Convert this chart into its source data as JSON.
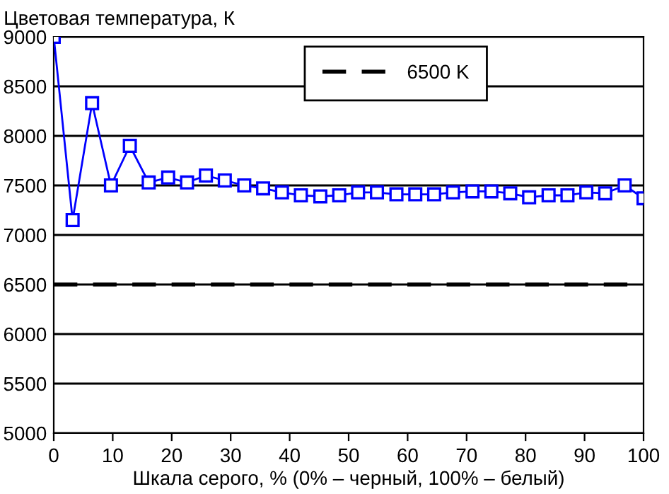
{
  "chart_data": {
    "type": "line",
    "ylabel": "Цветовая температура, К",
    "xlabel": "Шкала серого, % (0% – черный, 100% – белый)",
    "x": [
      0,
      3.2,
      6.5,
      9.7,
      12.9,
      16.1,
      19.4,
      22.6,
      25.8,
      29.0,
      32.3,
      35.5,
      38.7,
      41.9,
      45.2,
      48.4,
      51.6,
      54.8,
      58.1,
      61.3,
      64.5,
      67.7,
      71.0,
      74.2,
      77.4,
      80.6,
      83.9,
      87.1,
      90.3,
      93.5,
      96.8,
      100
    ],
    "series": [
      {
        "color": "#0000ff",
        "values": [
          9000,
          7150,
          8330,
          7500,
          7900,
          7530,
          7580,
          7530,
          7600,
          7550,
          7500,
          7470,
          7430,
          7400,
          7390,
          7400,
          7430,
          7430,
          7410,
          7410,
          7410,
          7430,
          7440,
          7440,
          7420,
          7380,
          7400,
          7400,
          7430,
          7420,
          7500,
          7370
        ]
      }
    ],
    "marker": "square",
    "line_style": "solid",
    "ref_lines": [
      {
        "axis": "y",
        "value": 6500,
        "label": "6500 K",
        "color": "#000000",
        "line_style": "dashed"
      }
    ],
    "xlim": [
      0,
      100
    ],
    "xticks": [
      0,
      10,
      20,
      30,
      40,
      50,
      60,
      70,
      80,
      90,
      100
    ],
    "ylim": [
      5000,
      9000
    ],
    "yticks": [
      5000,
      5500,
      6000,
      6500,
      7000,
      7500,
      8000,
      8500,
      9000
    ],
    "grid": "y",
    "legend": "top"
  }
}
